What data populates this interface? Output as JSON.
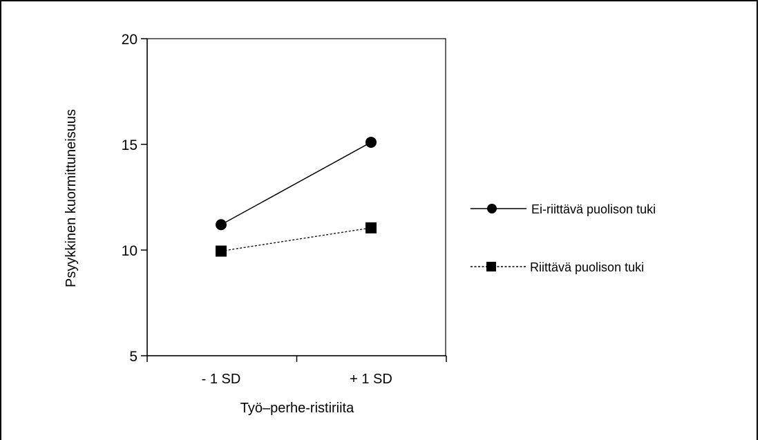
{
  "chart_data": {
    "type": "line",
    "title": "",
    "xlabel": "Työ–perhe-ristiriita",
    "ylabel": "Psyykkinen kuormittuneisuus",
    "categories": [
      "- 1 SD",
      "+ 1 SD"
    ],
    "ylim": [
      5,
      20
    ],
    "yticks": [
      5,
      10,
      15,
      20
    ],
    "grid": false,
    "legend_position": "right",
    "series": [
      {
        "name": "Ei-riittävä puolison tuki",
        "values": [
          11.2,
          15.1
        ],
        "marker": "circle",
        "line": "solid",
        "color": "#000000"
      },
      {
        "name": "Riittävä puolison tuki",
        "values": [
          9.95,
          11.05
        ],
        "marker": "square",
        "line": "dashed",
        "color": "#000000"
      }
    ]
  }
}
